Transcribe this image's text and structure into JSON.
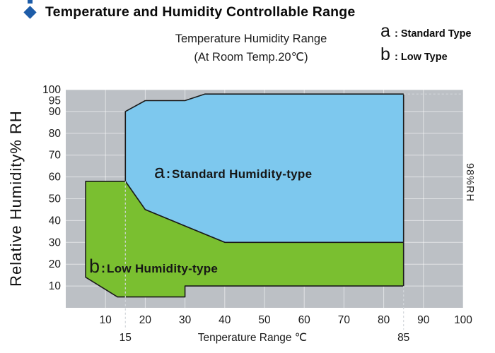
{
  "header": {
    "title": "Temperature and Humidity Controllable Range"
  },
  "legend": {
    "items": [
      {
        "symbol": "a",
        "label": ": Standard Type"
      },
      {
        "symbol": "b",
        "label": ": Low Type"
      }
    ]
  },
  "chart_data": {
    "type": "area",
    "title_line1": "Temperature Humidity Range",
    "title_line2": "(At Room Temp.20℃)",
    "xlabel": "Tenperature Range ℃",
    "ylabel": "Relative Humidity% RH",
    "xlim": [
      0,
      100
    ],
    "ylim": [
      0,
      100
    ],
    "x_ticks": [
      10,
      20,
      30,
      40,
      50,
      60,
      70,
      80,
      90,
      100
    ],
    "x_special_ticks": [
      15,
      85
    ],
    "y_ticks": [
      100,
      95,
      90,
      80,
      70,
      60,
      50,
      40,
      30,
      20,
      10
    ],
    "x_grid": [
      10,
      20,
      30,
      40,
      50,
      60,
      70,
      80,
      90,
      100
    ],
    "y_grid": [
      10,
      20,
      30,
      40,
      50,
      60,
      70,
      80,
      90,
      100
    ],
    "grid": true,
    "regions": [
      {
        "id": "a",
        "label": {
          "symbol": "a",
          "sep": ":",
          "text": "Standard Humidity-type"
        },
        "color": "#7DC8EE",
        "points": [
          [
            15,
            90
          ],
          [
            20,
            95
          ],
          [
            30,
            95
          ],
          [
            35,
            98
          ],
          [
            85,
            98
          ],
          [
            85,
            30
          ],
          [
            40,
            30
          ],
          [
            20,
            45
          ],
          [
            15,
            58
          ]
        ]
      },
      {
        "id": "b",
        "label": {
          "symbol": "b",
          "sep": ":",
          "text": "Low Humidity-type"
        },
        "color": "#7ABF30",
        "points": [
          [
            5,
            58
          ],
          [
            15,
            58
          ],
          [
            20,
            45
          ],
          [
            40,
            30
          ],
          [
            85,
            30
          ],
          [
            85,
            10
          ],
          [
            30,
            10
          ],
          [
            30,
            5
          ],
          [
            13,
            5
          ],
          [
            5,
            14
          ]
        ]
      }
    ],
    "guides": [
      {
        "axis": "x",
        "at": 15,
        "from_rh": 58,
        "to_rh": -10
      },
      {
        "axis": "x",
        "at": 85,
        "from_rh": 10,
        "to_rh": -10
      },
      {
        "axis": "y",
        "at": 98,
        "from_t": 85,
        "to_t": 100
      }
    ],
    "annotations": [
      {
        "text": "98%RH",
        "y": 98,
        "position": "right"
      }
    ],
    "colors": {
      "plot_bg": "#BCC0C5",
      "grid": "#FFFFFF",
      "edge": "#1A1A1A",
      "guide": "#D2D6DA",
      "accent": "#1D5CA8"
    }
  }
}
